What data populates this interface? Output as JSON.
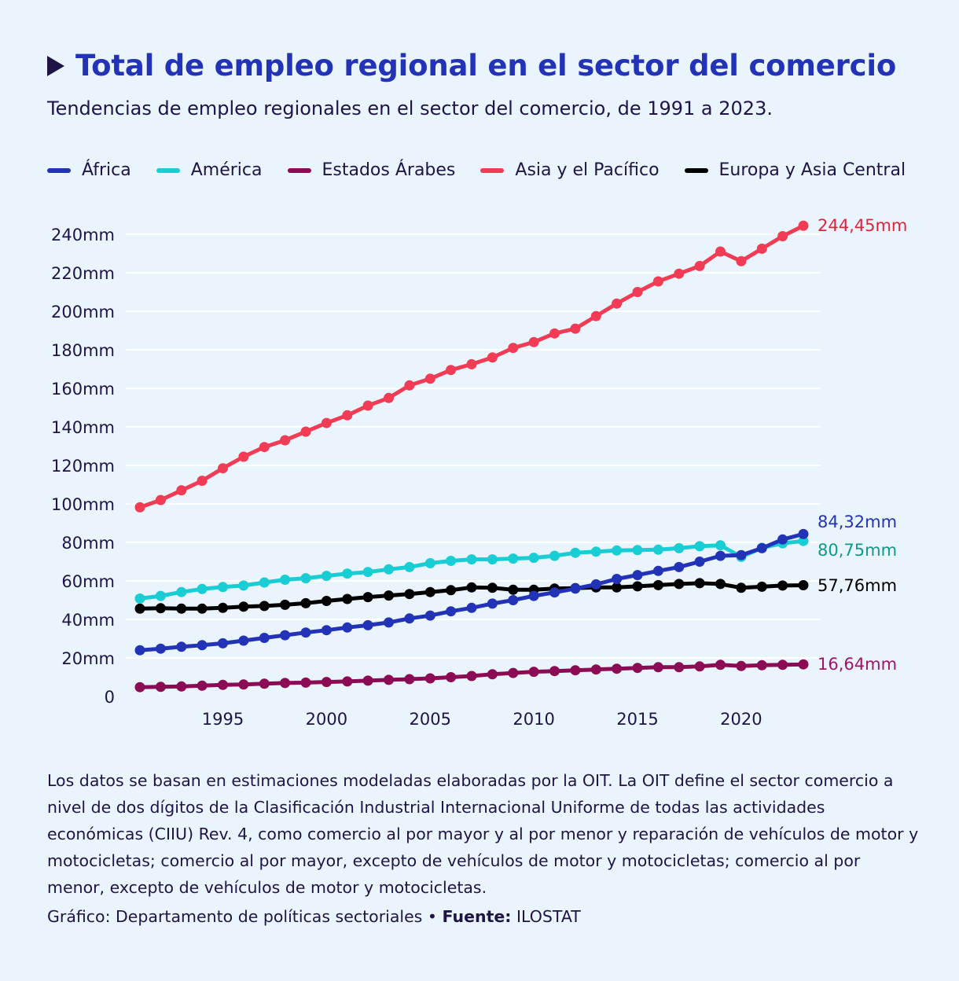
{
  "title": "Total de empleo regional en el sector del comercio",
  "subtitle": "Tendencias de empleo regionales en el sector del comercio, de 1991 a 2023.",
  "note": "Los datos se basan en estimaciones modeladas elaboradas por la OIT. La OIT define el sector comercio a nivel de dos dígitos de la Clasificación Industrial Internacional Uniforme de todas las actividades económicas (CIIU) Rev. 4, como comercio al por mayor y al por menor y reparación de vehículos de motor y motocicletas; comercio al por mayor, excepto de vehículos de motor y motocicletas; comercio al por menor, excepto de vehículos de motor y motocicletas.",
  "credit": {
    "graphic": "Gráfico: Departamento de políticas sectoriales",
    "separator": " • ",
    "source_label": "Fuente:",
    "source": " ILOSTAT"
  },
  "chart_data": {
    "type": "line",
    "xlim": [
      1991,
      2023
    ],
    "ylim": [
      0,
      240
    ],
    "x_ticks": [
      1995,
      2000,
      2005,
      2010,
      2015,
      2020
    ],
    "y_ticks": [
      0,
      20,
      40,
      60,
      80,
      100,
      120,
      140,
      160,
      180,
      200,
      220,
      240
    ],
    "y_tick_labels": [
      "0",
      "20mm",
      "40mm",
      "60mm",
      "80mm",
      "100mm",
      "120mm",
      "140mm",
      "160mm",
      "180mm",
      "200mm",
      "220mm",
      "240mm"
    ],
    "x": [
      1991,
      1992,
      1993,
      1994,
      1995,
      1996,
      1997,
      1998,
      1999,
      2000,
      2001,
      2002,
      2003,
      2004,
      2005,
      2006,
      2007,
      2008,
      2009,
      2010,
      2011,
      2012,
      2013,
      2014,
      2015,
      2016,
      2017,
      2018,
      2019,
      2020,
      2021,
      2022,
      2023
    ],
    "series": [
      {
        "name": "África",
        "color": "#2233b8",
        "end_label": "84,32mm",
        "label_color": "#2233b8",
        "values": [
          24,
          24.8,
          25.8,
          26.6,
          27.6,
          29,
          30.4,
          31.8,
          33.2,
          34.4,
          35.8,
          37,
          38.4,
          40.5,
          42,
          44.2,
          46,
          48.2,
          50,
          52.2,
          54,
          56,
          58.2,
          61,
          63,
          65.2,
          67.2,
          70,
          73,
          73.4,
          77,
          81.5,
          84.32
        ]
      },
      {
        "name": "América",
        "color": "#18cdd4",
        "end_label": "80,75mm",
        "label_color": "#0e9a8a",
        "values": [
          50.8,
          52.2,
          54.2,
          55.8,
          56.8,
          57.6,
          59.2,
          60.6,
          61.4,
          62.6,
          63.8,
          64.6,
          66,
          67.2,
          69.2,
          70.4,
          71.2,
          71.2,
          71.6,
          72,
          73,
          74.6,
          75.2,
          75.8,
          76,
          76.2,
          77,
          78,
          78.5,
          72.5,
          77.2,
          79.5,
          80.75
        ]
      },
      {
        "name": "Estados Árabes",
        "color": "#8c0b55",
        "end_label": "16,64mm",
        "label_color": "#a0136a",
        "values": [
          4.8,
          5,
          5.2,
          5.6,
          6,
          6.2,
          6.6,
          7,
          7.2,
          7.5,
          7.8,
          8.2,
          8.6,
          9,
          9.4,
          10,
          10.6,
          11.5,
          12.2,
          12.8,
          13.2,
          13.6,
          14,
          14.4,
          14.8,
          15.2,
          15.2,
          15.6,
          16.4,
          15.8,
          16.2,
          16.4,
          16.64
        ]
      },
      {
        "name": "Asia y el Pacífico",
        "color": "#f23b55",
        "end_label": "244,45mm",
        "label_color": "#e0233d",
        "values": [
          98.2,
          102,
          107,
          112,
          118.5,
          124.5,
          129.5,
          133,
          137.5,
          142,
          146,
          151,
          155,
          161.5,
          165,
          169.5,
          172.5,
          176,
          181,
          184,
          188.5,
          191,
          197.5,
          204,
          210,
          215.5,
          219.5,
          223.5,
          231,
          226,
          232.5,
          239,
          244.45
        ]
      },
      {
        "name": "Europa y Asia Central",
        "color": "#000000",
        "end_label": "57,76mm",
        "label_color": "#000000",
        "values": [
          45.6,
          45.8,
          45.6,
          45.6,
          46,
          46.6,
          47,
          47.6,
          48.4,
          49.6,
          50.6,
          51.6,
          52.4,
          53.2,
          54.2,
          55.2,
          56.6,
          56.4,
          55.4,
          55.4,
          56,
          56.2,
          56.6,
          56.6,
          57.2,
          57.8,
          58.4,
          58.8,
          58.4,
          56.4,
          57,
          57.6,
          57.76
        ]
      }
    ]
  }
}
